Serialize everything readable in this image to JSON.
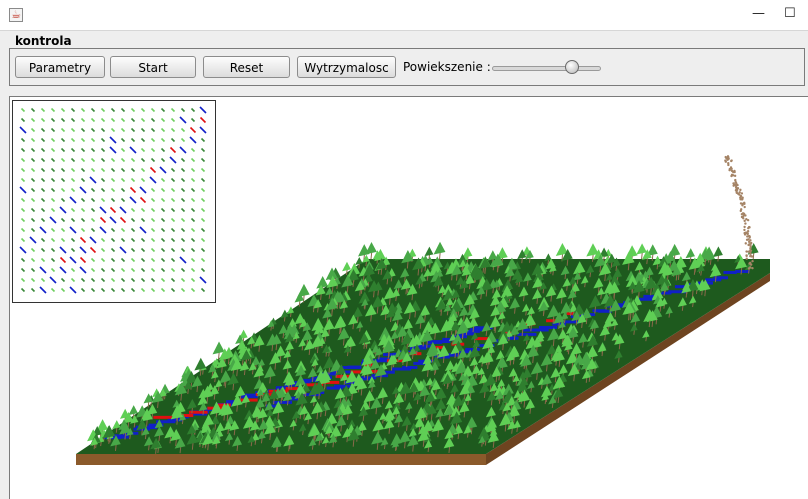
{
  "window": {
    "icon": "java-cup-icon",
    "minimize_glyph": "—",
    "maximize_glyph": "☐"
  },
  "panel": {
    "title": "kontrola"
  },
  "toolbar": {
    "buttons": [
      {
        "label": "Parametry"
      },
      {
        "label": "Start"
      },
      {
        "label": "Reset"
      },
      {
        "label": "Wytrzymalosc"
      }
    ],
    "zoom_label": "Powiekszenie :",
    "zoom_level": 0.77
  },
  "simulation": {
    "colors": {
      "ground_top": "#1e5a1e",
      "ground_side": "#8b5a2b",
      "tree_light": "#5fcf55",
      "tree_dark": "#2f7f2f",
      "trunk": "#8a6a4a",
      "burning": "#e01010",
      "burnt": "#1020c8",
      "smoke": "#a58466"
    }
  }
}
